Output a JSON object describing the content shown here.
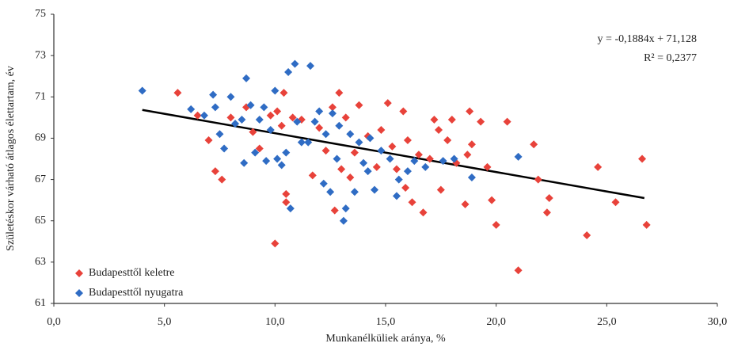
{
  "chart_data": {
    "type": "scatter",
    "x_label": "Munkanélküliek aránya, %",
    "y_label": "Születéskor várható átlagos élettartam, év",
    "annotations": [
      "y = -0,1884x + 71,128",
      "R² = 0,2377"
    ],
    "xlim": [
      0,
      30
    ],
    "ylim": [
      61,
      75
    ],
    "xticks": [
      {
        "value": 0,
        "label": "0,0"
      },
      {
        "value": 5,
        "label": "5,0"
      },
      {
        "value": 10,
        "label": "10,0"
      },
      {
        "value": 15,
        "label": "15,0"
      },
      {
        "value": 20,
        "label": "20,0"
      },
      {
        "value": 25,
        "label": "25,0"
      },
      {
        "value": 30,
        "label": "30,0"
      }
    ],
    "yticks": [
      61,
      63,
      65,
      67,
      69,
      71,
      73,
      75
    ],
    "grid": false,
    "legend": "lower left",
    "trendline": {
      "color": "#000000",
      "x": [
        4.0,
        26.7
      ],
      "values": [
        70.37,
        66.1
      ]
    },
    "series": [
      {
        "name": "Budapesttől keletre",
        "color": "#e8423a",
        "x": [
          5.6,
          6.5,
          7.0,
          7.3,
          7.6,
          8.0,
          8.7,
          9.0,
          9.3,
          9.8,
          10.0,
          10.1,
          10.3,
          10.4,
          10.5,
          10.5,
          10.8,
          11.2,
          11.7,
          12.0,
          12.3,
          12.6,
          12.7,
          12.9,
          13.0,
          13.2,
          13.4,
          13.6,
          13.8,
          14.2,
          14.6,
          14.8,
          15.1,
          15.3,
          15.5,
          15.8,
          15.9,
          16.0,
          16.2,
          16.5,
          16.7,
          17.0,
          17.2,
          17.4,
          17.5,
          17.8,
          18.0,
          18.2,
          18.6,
          18.7,
          18.8,
          18.9,
          19.3,
          19.6,
          19.8,
          20.0,
          20.5,
          21.0,
          21.7,
          21.9,
          22.3,
          22.4,
          24.1,
          24.6,
          25.4,
          26.6,
          26.8
        ],
        "values": [
          71.2,
          70.1,
          68.9,
          67.4,
          67.0,
          70.0,
          70.5,
          69.3,
          68.5,
          70.1,
          63.9,
          70.3,
          69.6,
          71.2,
          66.3,
          65.9,
          70.0,
          69.9,
          67.2,
          69.5,
          68.4,
          70.5,
          65.5,
          71.2,
          67.5,
          70.0,
          67.1,
          68.3,
          70.6,
          69.1,
          67.6,
          69.4,
          70.7,
          68.6,
          67.5,
          70.3,
          66.6,
          68.9,
          65.9,
          68.2,
          65.4,
          68.0,
          69.9,
          69.4,
          66.5,
          68.9,
          69.9,
          67.8,
          65.8,
          68.2,
          70.3,
          68.7,
          69.8,
          67.6,
          66.0,
          64.8,
          69.8,
          62.6,
          68.7,
          67.0,
          65.4,
          66.1,
          64.3,
          67.6,
          65.9,
          68.0,
          64.8
        ]
      },
      {
        "name": "Budapesttől nyugatra",
        "color": "#2f6cc4",
        "x": [
          4.0,
          6.2,
          6.8,
          7.2,
          7.3,
          7.5,
          7.7,
          8.0,
          8.2,
          8.5,
          8.6,
          8.7,
          8.9,
          9.1,
          9.3,
          9.5,
          9.6,
          9.8,
          10.0,
          10.1,
          10.3,
          10.5,
          10.6,
          10.7,
          10.9,
          11.0,
          11.2,
          11.5,
          11.6,
          11.8,
          12.0,
          12.2,
          12.3,
          12.5,
          12.6,
          12.8,
          12.9,
          13.1,
          13.2,
          13.4,
          13.6,
          13.8,
          14.0,
          14.2,
          14.3,
          14.5,
          14.8,
          15.2,
          15.5,
          15.6,
          16.0,
          16.3,
          16.8,
          17.6,
          18.1,
          18.9,
          21.0
        ],
        "values": [
          71.3,
          70.4,
          70.1,
          71.1,
          70.5,
          69.2,
          68.5,
          71.0,
          69.7,
          69.9,
          67.8,
          71.9,
          70.6,
          68.3,
          69.9,
          70.5,
          67.9,
          69.4,
          71.3,
          68.0,
          67.7,
          68.3,
          72.2,
          65.6,
          72.6,
          69.8,
          68.8,
          68.8,
          72.5,
          69.8,
          70.3,
          66.8,
          69.2,
          66.4,
          70.2,
          68.0,
          69.6,
          65.0,
          65.6,
          69.2,
          66.4,
          68.8,
          67.8,
          67.4,
          69.0,
          66.5,
          68.4,
          68.0,
          66.2,
          67.0,
          67.4,
          67.9,
          67.6,
          67.9,
          68.0,
          67.1,
          68.1
        ]
      }
    ]
  }
}
